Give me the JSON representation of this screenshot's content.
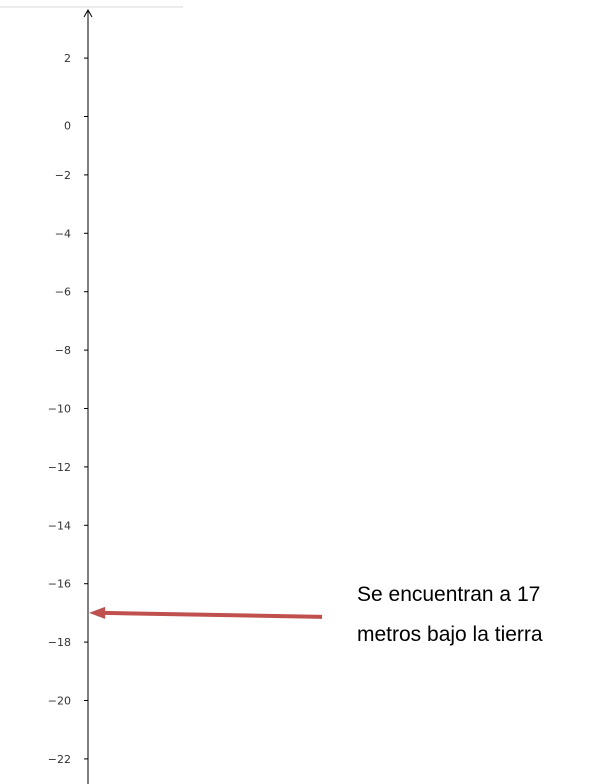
{
  "figure": {
    "axis_tick_labels": [
      "2",
      "0",
      "−2",
      "−4",
      "−6",
      "−8",
      "−10",
      "−12",
      "−14",
      "−16",
      "−18",
      "−20",
      "−22"
    ],
    "axis_tick_values": [
      2,
      0,
      -2,
      -4,
      -6,
      -8,
      -10,
      -12,
      -14,
      -16,
      -18,
      -20,
      -22
    ],
    "arrow_target_value": -17,
    "annotation_lines": [
      "Se encuentran a 17",
      "metros bajo la tierra"
    ],
    "colors": {
      "axis": "#000000",
      "arrow": "#c0504d",
      "text": "#000000"
    }
  }
}
